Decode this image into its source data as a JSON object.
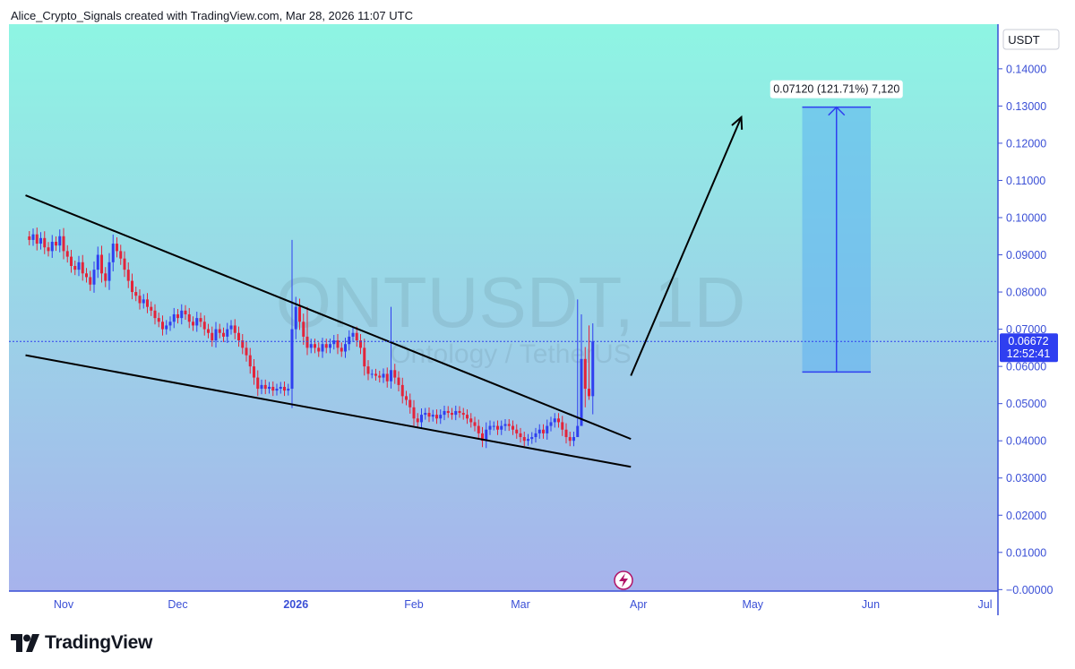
{
  "header": {
    "credit": "Alice_Crypto_Signals created with TradingView.com, Mar 28, 2026 11:07 UTC"
  },
  "footer": {
    "brand": "TradingView"
  },
  "colors": {
    "bg_top": "#8ef5e3",
    "bg_bottom": "#a7b3ec",
    "up": "#2f3ff0",
    "down": "#e3243a",
    "axis": "#3a4fd6",
    "projection": "#5bb1f0"
  },
  "chart_data": {
    "type": "candlestick",
    "symbol": "ONTUSDT 1D",
    "watermark": {
      "title": "ONTUSDT, 1D",
      "subtitle": "Ontology / TetherUS"
    },
    "currency": "USDT",
    "y_ticks": [
      "0.14000",
      "0.13000",
      "0.12000",
      "0.11000",
      "0.10000",
      "0.09000",
      "0.08000",
      "0.07000",
      "0.06000",
      "0.05000",
      "0.04000",
      "0.03000",
      "0.02000",
      "0.01000",
      "−0.00000"
    ],
    "ylim": [
      -0.0004,
      0.152
    ],
    "x_ticks": [
      {
        "label": "Nov",
        "date": "2025-11-01"
      },
      {
        "label": "Dec",
        "date": "2025-12-01"
      },
      {
        "label": "2026",
        "date": "2026-01-01",
        "bold": true
      },
      {
        "label": "Feb",
        "date": "2026-02-01"
      },
      {
        "label": "Mar",
        "date": "2026-03-01"
      },
      {
        "label": "Apr",
        "date": "2026-04-01"
      },
      {
        "label": "May",
        "date": "2026-05-01"
      },
      {
        "label": "Jun",
        "date": "2026-06-01"
      },
      {
        "label": "Jul",
        "date": "2026-07-01"
      }
    ],
    "first_candle_date": "2025-10-23",
    "closes": [
      0.094,
      0.0955,
      0.093,
      0.0945,
      0.092,
      0.091,
      0.0935,
      0.0925,
      0.095,
      0.091,
      0.0895,
      0.087,
      0.086,
      0.088,
      0.085,
      0.084,
      0.082,
      0.086,
      0.09,
      0.085,
      0.083,
      0.088,
      0.093,
      0.091,
      0.089,
      0.086,
      0.083,
      0.08,
      0.079,
      0.077,
      0.078,
      0.076,
      0.075,
      0.073,
      0.072,
      0.07,
      0.071,
      0.072,
      0.074,
      0.073,
      0.075,
      0.074,
      0.072,
      0.071,
      0.073,
      0.072,
      0.07,
      0.069,
      0.067,
      0.07,
      0.069,
      0.068,
      0.07,
      0.071,
      0.069,
      0.067,
      0.065,
      0.063,
      0.06,
      0.057,
      0.054,
      0.055,
      0.054,
      0.0545,
      0.0535,
      0.054,
      0.0545,
      0.0535,
      0.054,
      0.07,
      0.076,
      0.072,
      0.068,
      0.065,
      0.066,
      0.065,
      0.064,
      0.066,
      0.065,
      0.066,
      0.067,
      0.065,
      0.064,
      0.066,
      0.068,
      0.069,
      0.067,
      0.065,
      0.06,
      0.058,
      0.058,
      0.0575,
      0.057,
      0.058,
      0.056,
      0.059,
      0.057,
      0.055,
      0.052,
      0.051,
      0.049,
      0.046,
      0.045,
      0.047,
      0.0475,
      0.0465,
      0.047,
      0.046,
      0.047,
      0.048,
      0.0475,
      0.047,
      0.048,
      0.0475,
      0.047,
      0.046,
      0.045,
      0.044,
      0.042,
      0.04,
      0.043,
      0.044,
      0.044,
      0.043,
      0.044,
      0.0445,
      0.044,
      0.043,
      0.042,
      0.041,
      0.04,
      0.0405,
      0.041,
      0.042,
      0.043,
      0.042,
      0.044,
      0.045,
      0.046,
      0.045,
      0.043,
      0.041,
      0.04,
      0.041,
      0.044,
      0.062,
      0.054,
      0.052,
      0.0667
    ],
    "resistance_line": [
      {
        "date": "2025-10-22",
        "price": 0.106
      },
      {
        "date": "2026-03-30",
        "price": 0.0405
      }
    ],
    "support_line": [
      {
        "date": "2025-10-22",
        "price": 0.063
      },
      {
        "date": "2026-03-30",
        "price": 0.033
      }
    ],
    "arrow": [
      {
        "date": "2026-03-30",
        "price": 0.0575
      },
      {
        "date": "2026-04-28",
        "price": 0.127
      }
    ],
    "projection": {
      "label": "0.07120 (121.71%) 7,120",
      "low": 0.0585,
      "high": 0.1297,
      "from": "2026-05-14",
      "to": "2026-06-01"
    },
    "last_price": {
      "value": "0.06672",
      "countdown": "12:52:41"
    }
  }
}
